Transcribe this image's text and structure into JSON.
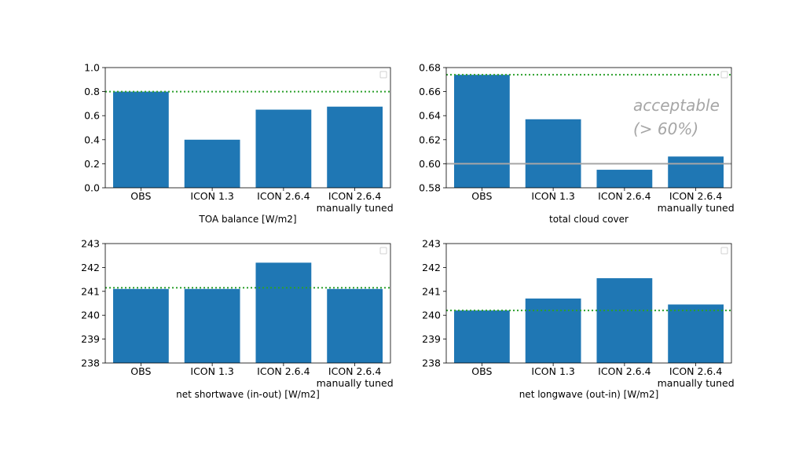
{
  "chart_data": [
    {
      "type": "bar",
      "categories": [
        "OBS",
        "ICON 1.3",
        "ICON 2.6.4",
        "ICON 2.6.4\nmanually tuned"
      ],
      "values": [
        0.8,
        0.4,
        0.65,
        0.675
      ],
      "xlabel": "TOA balance [W/m2]",
      "ylabel": "",
      "ylim": [
        0.0,
        1.0
      ],
      "yticks": [
        "0.0",
        "0.2",
        "0.4",
        "0.6",
        "0.8",
        "1.0"
      ],
      "reference_line": {
        "value": 0.8,
        "style": "dotted",
        "color": "#2ca02c"
      },
      "grid": false,
      "color": "#1f77b4"
    },
    {
      "type": "bar",
      "categories": [
        "OBS",
        "ICON 1.3",
        "ICON 2.6.4",
        "ICON 2.6.4\nmanually tuned"
      ],
      "values": [
        0.674,
        0.637,
        0.595,
        0.606
      ],
      "xlabel": "total cloud cover",
      "ylabel": "",
      "ylim": [
        0.58,
        0.68
      ],
      "yticks": [
        "0.58",
        "0.60",
        "0.62",
        "0.64",
        "0.66",
        "0.68"
      ],
      "reference_line": {
        "value": 0.674,
        "style": "dotted",
        "color": "#2ca02c"
      },
      "threshold_line": {
        "value": 0.6,
        "style": "solid",
        "color": "#a6a6a6"
      },
      "annotation": [
        "acceptable",
        "(> 60%)"
      ],
      "grid": false,
      "color": "#1f77b4"
    },
    {
      "type": "bar",
      "categories": [
        "OBS",
        "ICON 1.3",
        "ICON 2.6.4",
        "ICON 2.6.4\nmanually tuned"
      ],
      "values": [
        241.1,
        241.1,
        242.2,
        241.1
      ],
      "xlabel": "net shortwave (in-out) [W/m2]",
      "ylabel": "",
      "ylim": [
        238,
        243
      ],
      "yticks": [
        "238",
        "239",
        "240",
        "241",
        "242",
        "243"
      ],
      "reference_line": {
        "value": 241.15,
        "style": "dotted",
        "color": "#2ca02c"
      },
      "grid": false,
      "color": "#1f77b4"
    },
    {
      "type": "bar",
      "categories": [
        "OBS",
        "ICON 1.3",
        "ICON 2.6.4",
        "ICON 2.6.4\nmanually tuned"
      ],
      "values": [
        240.2,
        240.7,
        241.55,
        240.45
      ],
      "xlabel": "net longwave (out-in) [W/m2]",
      "ylabel": "",
      "ylim": [
        238,
        243
      ],
      "yticks": [
        "238",
        "239",
        "240",
        "241",
        "242",
        "243"
      ],
      "reference_line": {
        "value": 240.2,
        "style": "dotted",
        "color": "#2ca02c"
      },
      "grid": false,
      "color": "#1f77b4"
    }
  ]
}
